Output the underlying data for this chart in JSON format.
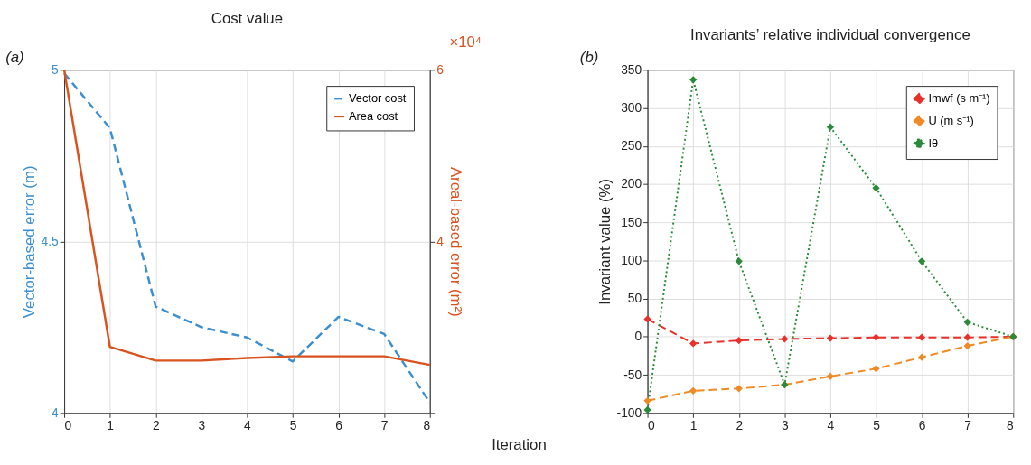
{
  "chart_data": [
    {
      "type": "line",
      "title": "Cost value",
      "xlabel": "Iteration",
      "ylabel": "Vector-based error (m)",
      "y2label": "Areal-based error (m²)",
      "x": [
        0,
        1,
        2,
        3,
        4,
        5,
        6,
        7,
        8
      ],
      "series": [
        {
          "name": "Vector cost",
          "color": "#3b8fd0",
          "line_style": "dashed",
          "values": [
            4.99,
            4.83,
            4.31,
            4.25,
            4.22,
            4.15,
            4.28,
            4.23,
            4.03
          ]
        },
        {
          "name": "Area cost",
          "color": "#d9531e",
          "line_style": "solid",
          "axis": "y2",
          "values": [
            6,
            2.77,
            2.61,
            2.61,
            2.64,
            2.66,
            2.66,
            2.66,
            2.56
          ]
        }
      ],
      "xlim": [
        0,
        8
      ],
      "xticks": [
        0,
        1,
        2,
        3,
        4,
        5,
        6,
        7,
        8
      ],
      "ylim": [
        4,
        5
      ],
      "yticks": [
        4,
        4.5,
        5
      ],
      "y2lim": [
        2,
        6
      ],
      "y2ticks": [
        {
          "value": 2,
          "label": null
        },
        4,
        6
      ],
      "annotations": [
        "(a)",
        "×10⁴"
      ],
      "grid": true,
      "legend": "top right"
    },
    {
      "type": "line",
      "title": "Invariants’ relative individual convergence",
      "ylabel": "Invariant value (%)",
      "x": [
        0,
        1,
        2,
        3,
        4,
        5,
        6,
        7,
        8
      ],
      "series": [
        {
          "name": "Imwf (s m⁻¹)",
          "color": "#e8312a",
          "line_style": "dashed",
          "values": [
            23,
            -9,
            -5,
            -3,
            -2,
            -1,
            -1,
            -1,
            0
          ]
        },
        {
          "name": "U (m s⁻¹)",
          "color": "#f08a24",
          "line_style": "dashed",
          "values": [
            -84,
            -71,
            -68,
            -63,
            -52,
            -42,
            -27,
            -12,
            0
          ]
        },
        {
          "name": "Iθ",
          "color": "#2a8a3a",
          "line_style": "dotted",
          "values": [
            -96,
            337,
            99,
            -63,
            275,
            195,
            99,
            19,
            0
          ]
        }
      ],
      "xlim": [
        0,
        8
      ],
      "xticks": [
        0,
        1,
        2,
        3,
        4,
        5,
        6,
        7,
        8
      ],
      "ylim": [
        -100,
        350
      ],
      "yticks": [
        -100,
        -50,
        0,
        50,
        100,
        150,
        200,
        250,
        300,
        350
      ],
      "annotations": [
        "(b)"
      ],
      "grid": true,
      "legend": "top right",
      "marker": "diamond"
    }
  ]
}
